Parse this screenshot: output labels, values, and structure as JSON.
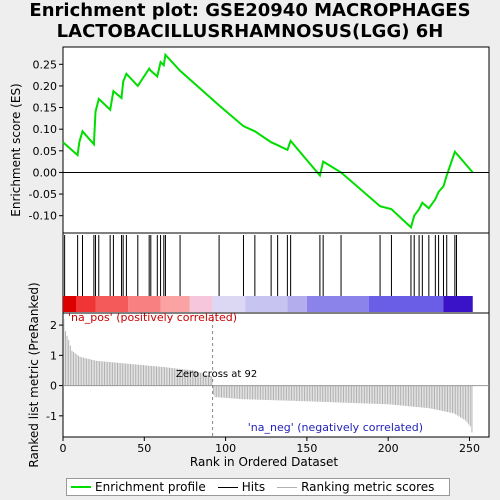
{
  "title_line1": "Enrichment plot: GSE20940 MACROPHAGES",
  "title_line2": "LACTOBACILLUSRHAMNOSUS(LGG) 6H",
  "colors": {
    "es_line": "#00dd00",
    "hits": "#000000",
    "ranking": "#b0b0b0",
    "pos_label": "#cc0000",
    "neg_label": "#2222bb",
    "plot_bg": "#ffffff"
  },
  "chart_data": [
    {
      "type": "line",
      "panel": "enrichment",
      "ylabel": "Enrichment score (ES)",
      "ylim": [
        -0.14,
        0.29
      ],
      "yticks": [
        -0.1,
        -0.05,
        0.0,
        0.05,
        0.1,
        0.15,
        0.2,
        0.25
      ],
      "ytick_labels": [
        "-0.10",
        "-0.05",
        "0.00",
        "0.05",
        "0.10",
        "0.15",
        "0.20",
        "0.25"
      ],
      "xlim": [
        0,
        262
      ],
      "x": [
        0,
        9,
        10,
        12,
        19,
        20,
        22,
        29,
        31,
        36,
        37,
        39,
        46,
        53,
        54,
        58,
        60,
        62,
        63,
        72,
        96,
        111,
        118,
        128,
        132,
        138,
        140,
        158,
        160,
        171,
        195,
        202,
        214,
        216,
        219,
        221,
        225,
        229,
        231,
        234,
        236,
        241,
        252
      ],
      "y": [
        0.07,
        0.04,
        0.07,
        0.095,
        0.065,
        0.14,
        0.17,
        0.145,
        0.188,
        0.172,
        0.21,
        0.228,
        0.2,
        0.24,
        0.235,
        0.222,
        0.255,
        0.248,
        0.272,
        0.235,
        0.155,
        0.107,
        0.095,
        0.07,
        0.063,
        0.052,
        0.073,
        -0.007,
        0.025,
        0.0,
        -0.078,
        -0.085,
        -0.127,
        -0.1,
        -0.085,
        -0.07,
        -0.083,
        -0.062,
        -0.045,
        -0.032,
        -0.007,
        0.048,
        0.0
      ]
    },
    {
      "type": "hits",
      "panel": "hits",
      "positions": [
        1,
        9,
        12,
        19,
        20,
        22,
        29,
        31,
        36,
        37,
        39,
        46,
        53,
        54,
        58,
        60,
        62,
        63,
        72,
        96,
        111,
        118,
        128,
        132,
        138,
        140,
        158,
        160,
        171,
        195,
        202,
        214,
        216,
        219,
        221,
        225,
        229,
        231,
        234,
        236,
        241,
        242
      ]
    },
    {
      "type": "bar",
      "panel": "ranking",
      "ylabel": "Ranked list metric (PreRanked)",
      "xlabel": "Rank in Ordered Dataset",
      "ylim": [
        -1.7,
        2.4
      ],
      "yticks": [
        -1,
        0,
        1,
        2
      ],
      "ytick_labels": [
        "-1",
        "0",
        "1",
        "2"
      ],
      "xticks": [
        0,
        50,
        100,
        150,
        200,
        250
      ],
      "xtick_labels": [
        "0",
        "50",
        "100",
        "150",
        "200",
        "250"
      ],
      "n": 252,
      "zero_cross": 92,
      "zero_cross_label": "Zero cross at 92",
      "pos_label": "'na_pos' (positively correlated)",
      "neg_label": "'na_neg' (negatively correlated)",
      "profile": [
        [
          0,
          2.2
        ],
        [
          1,
          1.8
        ],
        [
          3,
          1.5
        ],
        [
          5,
          1.15
        ],
        [
          10,
          0.95
        ],
        [
          20,
          0.82
        ],
        [
          40,
          0.72
        ],
        [
          60,
          0.62
        ],
        [
          80,
          0.5
        ],
        [
          91,
          0.3
        ],
        [
          92,
          -0.3
        ],
        [
          93,
          -0.38
        ],
        [
          110,
          -0.45
        ],
        [
          150,
          -0.52
        ],
        [
          200,
          -0.62
        ],
        [
          225,
          -0.75
        ],
        [
          240,
          -0.92
        ],
        [
          247,
          -1.15
        ],
        [
          250,
          -1.35
        ],
        [
          251,
          -1.55
        ]
      ]
    }
  ],
  "legend": {
    "es_label": "Enrichment profile",
    "hits_label": "Hits",
    "ranking_label": "Ranking metric scores"
  }
}
